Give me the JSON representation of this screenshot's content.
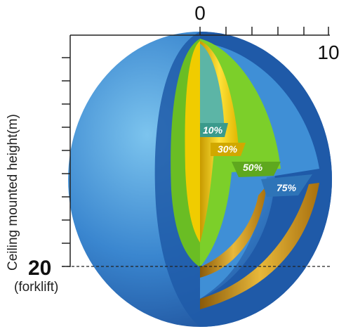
{
  "x_axis": {
    "start_label": "0",
    "end_label": "10"
  },
  "y_axis": {
    "label": "Ceiling mounted height(m)",
    "mark_value": "20",
    "mark_sublabel": "(forklift)"
  },
  "zones": [
    {
      "label": "10%",
      "color": "#5cb5a6"
    },
    {
      "label": "30%",
      "color": "#f5d400"
    },
    {
      "label": "50%",
      "color": "#7ccf2a"
    },
    {
      "label": "75%",
      "color": "#3f8fd6"
    }
  ],
  "sphere_colors": {
    "outer": "#3a86cf",
    "dark_band": "#1f5aa8",
    "gold": "#c9901a"
  }
}
